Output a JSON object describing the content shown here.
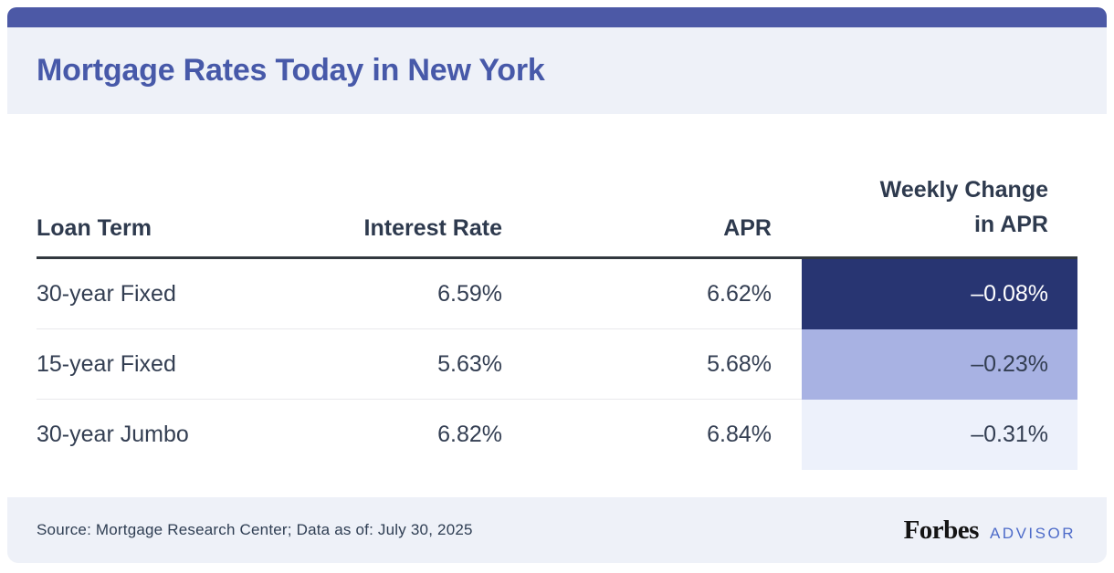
{
  "header": {
    "title": "Mortgage Rates Today in New York"
  },
  "table": {
    "columns": {
      "loan_term": "Loan Term",
      "interest_rate": "Interest Rate",
      "apr": "APR",
      "weekly_change_line1": "Weekly Change",
      "weekly_change_line2": "in APR"
    },
    "rows": [
      {
        "term": "30-year Fixed",
        "rate": "6.59%",
        "apr": "6.62%",
        "change": "–0.08%"
      },
      {
        "term": "15-year Fixed",
        "rate": "5.63%",
        "apr": "5.68%",
        "change": "–0.23%"
      },
      {
        "term": "30-year Jumbo",
        "rate": "6.82%",
        "apr": "6.84%",
        "change": "–0.31%"
      }
    ]
  },
  "footer": {
    "source": "Source: Mortgage Research Center; Data as of: July 30, 2025",
    "brand_name": "Forbes",
    "brand_suffix": "ADVISOR"
  },
  "colors": {
    "accent_bar": "#4c59a6",
    "band_bg": "#eef1f8",
    "title_text": "#4759a9",
    "table_text": "#333e52",
    "header_text": "#2e3a4e",
    "header_rule": "#32383f",
    "row_divider": "#e9e9ec",
    "advisor_blue": "#4d6bc9",
    "forbes_black": "#141414",
    "change_cell_bg": [
      "#283572",
      "#a8b2e3",
      "#edf1fb"
    ],
    "change_cell_text": [
      "#ffffff",
      "#333e52",
      "#333e52"
    ]
  },
  "chart_data": {
    "type": "table",
    "title": "Mortgage Rates Today in New York",
    "columns": [
      "Loan Term",
      "Interest Rate",
      "APR",
      "Weekly Change in APR"
    ],
    "rows": [
      [
        "30-year Fixed",
        "6.59%",
        "6.62%",
        "-0.08%"
      ],
      [
        "15-year Fixed",
        "5.63%",
        "5.68%",
        "-0.23%"
      ],
      [
        "30-year Jumbo",
        "6.82%",
        "6.84%",
        "-0.31%"
      ]
    ],
    "numeric": {
      "interest_rate_pct": [
        6.59,
        5.63,
        6.82
      ],
      "apr_pct": [
        6.62,
        5.68,
        6.84
      ],
      "weekly_change_in_apr_pct": [
        -0.08,
        -0.23,
        -0.31
      ]
    },
    "layout_hints": {
      "weekly_change_column_shaded": true,
      "shade_colors_by_row": [
        "#283572",
        "#a8b2e3",
        "#edf1fb"
      ]
    },
    "source": "Source: Mortgage Research Center; Data as of: July 30, 2025"
  }
}
